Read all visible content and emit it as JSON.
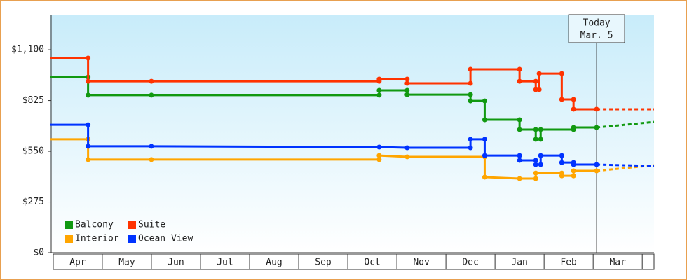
{
  "chart_data": {
    "type": "step-line",
    "categories": [
      "Apr",
      "May",
      "Jun",
      "Jul",
      "Aug",
      "Sep",
      "Oct",
      "Nov",
      "Dec",
      "Jan",
      "Feb",
      "Mar"
    ],
    "xlim": [
      -0.07,
      12.24
    ],
    "xticks": [
      0,
      1,
      2,
      3,
      4,
      5,
      6,
      7,
      8,
      9,
      10,
      11,
      12
    ],
    "ylim": [
      0,
      1290
    ],
    "yticks": [
      {
        "value": 0,
        "label": "$0"
      },
      {
        "value": 275,
        "label": "$275"
      },
      {
        "value": 550,
        "label": "$550"
      },
      {
        "value": 825,
        "label": "$825"
      },
      {
        "value": 1100,
        "label": "$1,100"
      }
    ],
    "legend": "bottom-left",
    "today": {
      "x": 11.07,
      "label": [
        "Today",
        "Mar. 5"
      ]
    },
    "series": [
      {
        "name": "Balcony",
        "color": "#119911",
        "x": [
          -0.07,
          0.71,
          0.71,
          2,
          6.64,
          6.64,
          7.21,
          7.21,
          8.5,
          8.5,
          8.79,
          8.79,
          9.5,
          9.5,
          9.83,
          9.83,
          9.93,
          9.93,
          10.6,
          10.6,
          11.07
        ],
        "values": [
          952,
          952,
          854,
          854,
          854,
          880,
          880,
          857,
          857,
          823,
          823,
          721,
          721,
          668,
          668,
          615,
          615,
          668,
          668,
          679,
          679
        ],
        "forecast": {
          "x": [
            11.07,
            12.24
          ],
          "values": [
            679,
            709
          ]
        }
      },
      {
        "name": "Suite",
        "color": "#ff3300",
        "x": [
          -0.07,
          0.71,
          0.71,
          2,
          6.64,
          6.64,
          7.21,
          7.21,
          8.5,
          8.5,
          9.5,
          9.5,
          9.83,
          9.83,
          9.9,
          9.9,
          10.36,
          10.36,
          10.6,
          10.6,
          11.07
        ],
        "values": [
          1055,
          1055,
          929,
          929,
          929,
          941,
          941,
          918,
          918,
          994,
          994,
          929,
          929,
          884,
          884,
          971,
          971,
          831,
          831,
          778,
          778
        ],
        "forecast": {
          "x": [
            11.07,
            12.24
          ],
          "values": [
            778,
            778
          ]
        }
      },
      {
        "name": "Interior",
        "color": "#ffa500",
        "x": [
          -0.07,
          0.71,
          0.71,
          2,
          6.64,
          6.64,
          7.21,
          8.79,
          8.79,
          9.5,
          9.83,
          9.83,
          10.36,
          10.36,
          10.6,
          10.6,
          11.07
        ],
        "values": [
          615,
          615,
          505,
          505,
          505,
          527,
          520,
          520,
          410,
          402,
          402,
          432,
          432,
          417,
          417,
          444,
          444
        ],
        "forecast": {
          "x": [
            11.07,
            12.24
          ],
          "values": [
            444,
            474
          ]
        }
      },
      {
        "name": "Ocean View",
        "color": "#0033ff",
        "x": [
          -0.07,
          0.71,
          0.71,
          2,
          6.64,
          7.21,
          8.5,
          8.5,
          8.79,
          8.79,
          9.5,
          9.5,
          9.83,
          9.83,
          9.93,
          9.93,
          10.36,
          10.36,
          10.6,
          10.6,
          11.07
        ],
        "values": [
          694,
          694,
          577,
          577,
          573,
          569,
          569,
          615,
          615,
          527,
          527,
          501,
          501,
          478,
          478,
          527,
          527,
          489,
          489,
          478,
          478
        ],
        "forecast": {
          "x": [
            11.07,
            12.24
          ],
          "values": [
            478,
            470
          ]
        }
      }
    ]
  }
}
